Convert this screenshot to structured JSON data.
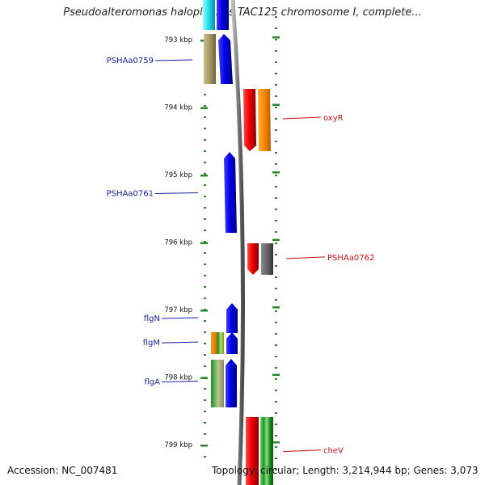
{
  "title": "Pseudoalteromonas haloplanktis TAC125 chromosome I, complete...",
  "footer": {
    "accession": "Accession: NC_007481",
    "topology": "Topology: circular; Length: 3,214,944 bp; Genes: 3,073"
  },
  "ruler": {
    "unit": "kbp",
    "ticks": [
      {
        "kbp": 793,
        "label": "793 kbp"
      },
      {
        "kbp": 794,
        "label": "794 kbp"
      },
      {
        "kbp": 795,
        "label": "795 kbp"
      },
      {
        "kbp": 796,
        "label": "796 kbp"
      },
      {
        "kbp": 797,
        "label": "797 kbp"
      },
      {
        "kbp": 798,
        "label": "798 kbp"
      },
      {
        "kbp": 799,
        "label": "799 kbp"
      }
    ]
  },
  "gene_labels": [
    {
      "name": "PSHAa0759",
      "strand": "minus",
      "kbp": 793.3
    },
    {
      "name": "oxyR",
      "strand": "plus",
      "kbp": 794.15
    },
    {
      "name": "PSHAa0761",
      "strand": "minus",
      "kbp": 795.27
    },
    {
      "name": "PSHAa0762",
      "strand": "plus",
      "kbp": 796.22
    },
    {
      "name": "flgN",
      "strand": "minus",
      "kbp": 797.12
    },
    {
      "name": "flgM",
      "strand": "minus",
      "kbp": 797.48
    },
    {
      "name": "flgA",
      "strand": "minus",
      "kbp": 798.06
    },
    {
      "name": "cheV",
      "strand": "plus",
      "kbp": 799.08
    }
  ],
  "colors": {
    "minus_label": "#1a1aa6",
    "plus_label": "#cc1111",
    "tick": "#2a8a2a",
    "backbone": "#8a8a8a"
  }
}
